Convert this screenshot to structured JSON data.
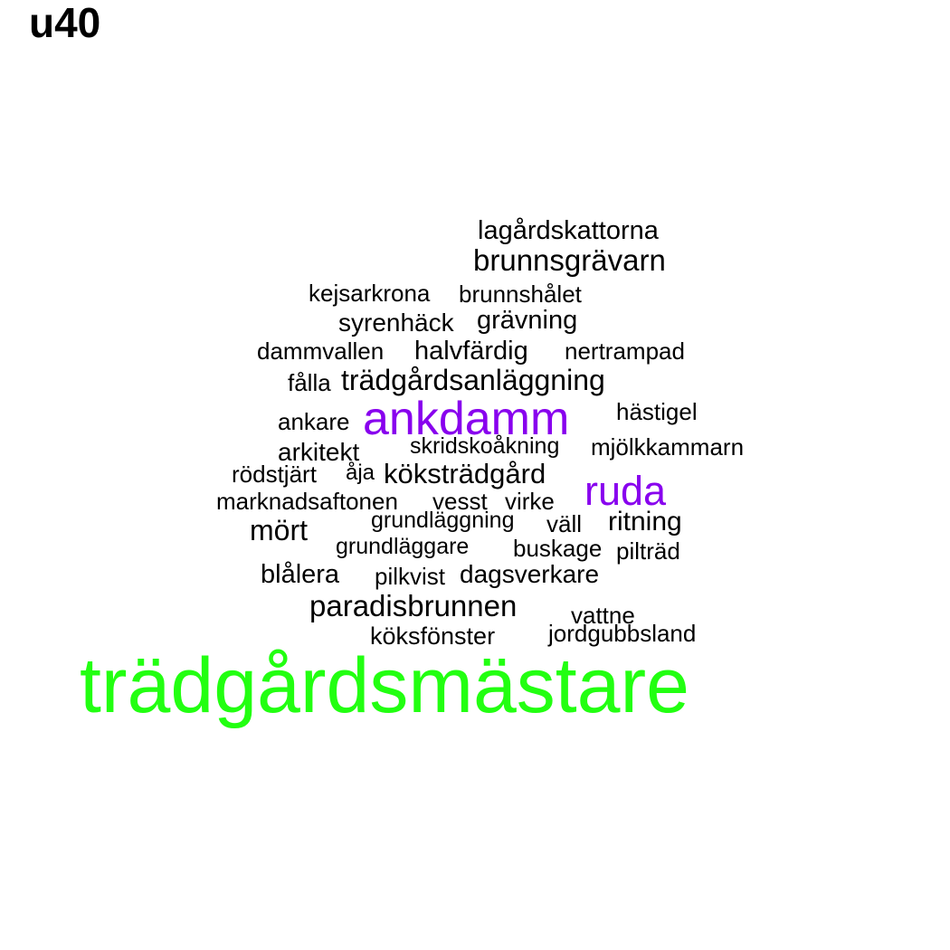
{
  "title": "u40",
  "colors": {
    "background": "#ffffff",
    "level1": "#000000",
    "level2": "#8800ee",
    "level3": "#22ff11"
  },
  "words": [
    {
      "text": "lagårdskattorna",
      "level": 1
    },
    {
      "text": "brunnsgrävarn",
      "level": 1
    },
    {
      "text": "kejsarkrona",
      "level": 1
    },
    {
      "text": "brunnshålet",
      "level": 1
    },
    {
      "text": "syrenhäck",
      "level": 1
    },
    {
      "text": "grävning",
      "level": 1
    },
    {
      "text": "dammvallen",
      "level": 1
    },
    {
      "text": "halvfärdig",
      "level": 1
    },
    {
      "text": "nertrampad",
      "level": 1
    },
    {
      "text": "fålla",
      "level": 1
    },
    {
      "text": "trädgårdsanläggning",
      "level": 1
    },
    {
      "text": "ankare",
      "level": 1
    },
    {
      "text": "ankdamm",
      "level": 2
    },
    {
      "text": "hästigel",
      "level": 1
    },
    {
      "text": "arkitekt",
      "level": 1
    },
    {
      "text": "skridskoåkning",
      "level": 1
    },
    {
      "text": "mjölkkammarn",
      "level": 1
    },
    {
      "text": "rödstjärt",
      "level": 1
    },
    {
      "text": "åja",
      "level": 1
    },
    {
      "text": "köksträdgård",
      "level": 1
    },
    {
      "text": "ruda",
      "level": 2
    },
    {
      "text": "marknadsaftonen",
      "level": 1
    },
    {
      "text": "vesst",
      "level": 1
    },
    {
      "text": "virke",
      "level": 1
    },
    {
      "text": "grundläggning",
      "level": 1
    },
    {
      "text": "väll",
      "level": 1
    },
    {
      "text": "ritning",
      "level": 1
    },
    {
      "text": "mört",
      "level": 1
    },
    {
      "text": "grundläggare",
      "level": 1
    },
    {
      "text": "buskage",
      "level": 1
    },
    {
      "text": "pilträd",
      "level": 1
    },
    {
      "text": "blålera",
      "level": 1
    },
    {
      "text": "pilkvist",
      "level": 1
    },
    {
      "text": "dagsverkare",
      "level": 1
    },
    {
      "text": "paradisbrunnen",
      "level": 1
    },
    {
      "text": "vattne",
      "level": 1
    },
    {
      "text": "köksfönster",
      "level": 1
    },
    {
      "text": "jordgubbsland",
      "level": 1
    },
    {
      "text": "trädgårdsmästare",
      "level": 3
    }
  ]
}
